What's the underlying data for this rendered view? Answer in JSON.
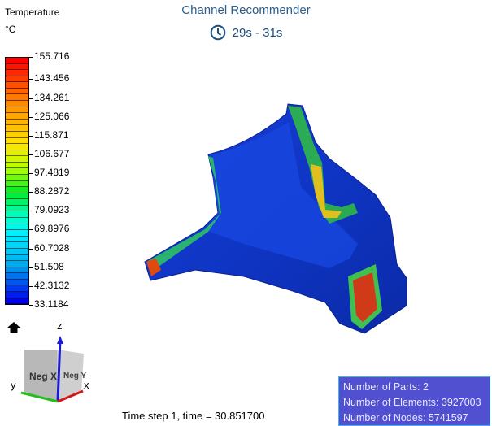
{
  "header": {
    "title": "Channel Recommender",
    "time_range": "29s - 31s",
    "time_icon": "clock-icon"
  },
  "legend": {
    "title": "Temperature",
    "unit": "°C",
    "ticks": [
      "155.716",
      "143.456",
      "134.261",
      "125.066",
      "115.871",
      "106.677",
      "97.4819",
      "88.2872",
      "79.0923",
      "69.8976",
      "60.7028",
      "51.508",
      "42.3132",
      "33.1184"
    ],
    "min": 33.1184,
    "max": 155.716
  },
  "orientation": {
    "home_icon": "home-icon",
    "cube_front": "Neg X",
    "cube_side": "Neg Y",
    "axis_x": "x",
    "axis_y": "y",
    "axis_z": "z"
  },
  "footer": {
    "time_step": "Time step 1, time = 30.851700"
  },
  "info": {
    "parts": "Number of Parts: 2",
    "elements": "Number of Elements: 3927003",
    "nodes": "Number of Nodes: 5741597"
  }
}
